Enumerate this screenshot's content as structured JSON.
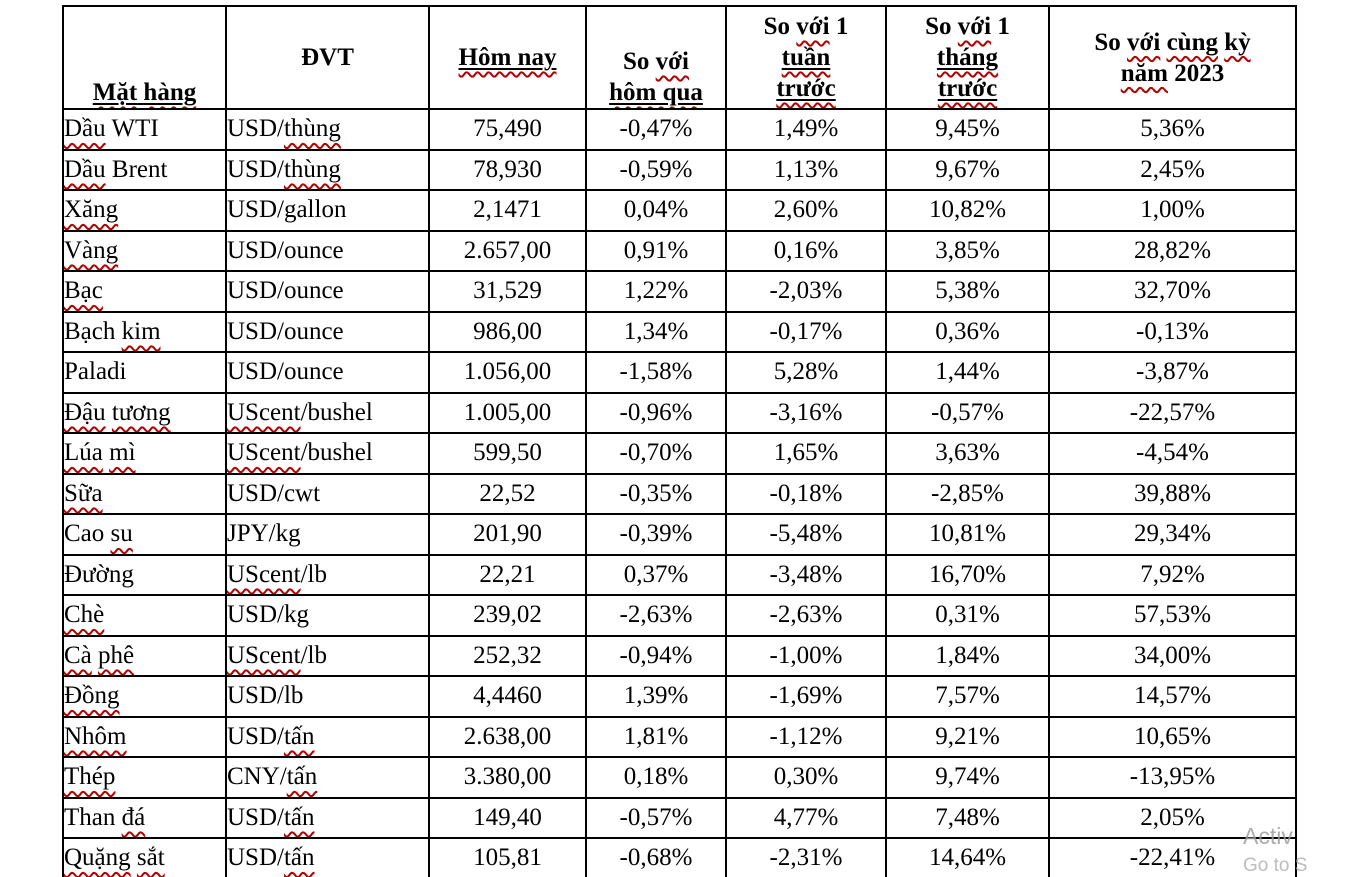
{
  "colors": {
    "spellcheck_red": "#b30000",
    "table_border": "#000000",
    "watermark_gray": "#9e9e9e"
  },
  "watermark": {
    "line1": "Activ",
    "line2": "Go to S"
  },
  "table": {
    "headers": [
      {
        "key": "mat_hang",
        "label": "Mặt hàng",
        "lines": [
          [
            {
              "t": "Mặt",
              "u": 1,
              "s": 1
            },
            {
              "t": " ",
              "u": 1
            },
            {
              "t": "hàng",
              "u": 1,
              "s": 1
            }
          ]
        ]
      },
      {
        "key": "dvt",
        "label": "ĐVT",
        "lines": [
          [
            {
              "t": "ĐVT"
            }
          ]
        ]
      },
      {
        "key": "hom_nay",
        "label": "Hôm nay",
        "lines": [
          [
            {
              "t": "Hôm nay",
              "u": 1,
              "s": 1
            }
          ]
        ]
      },
      {
        "key": "so_voi_hom_qua",
        "label": "So với hôm qua",
        "lines": [
          [
            {
              "t": "So "
            },
            {
              "t": "với",
              "s": 1
            }
          ],
          [
            {
              "t": "hôm qua",
              "u": 1,
              "s": 1
            }
          ]
        ]
      },
      {
        "key": "so_voi_1_tuan_truoc",
        "label": "So với 1 tuần trước",
        "lines": [
          [
            {
              "t": "So "
            },
            {
              "t": "với",
              "s": 1
            },
            {
              "t": " 1"
            }
          ],
          [
            {
              "t": "tuần",
              "u": 1,
              "s": 1
            }
          ],
          [
            {
              "t": "trước",
              "u": 1,
              "s": 1
            }
          ]
        ]
      },
      {
        "key": "so_voi_1_thang_truoc",
        "label": "So với 1 tháng trước",
        "lines": [
          [
            {
              "t": "So "
            },
            {
              "t": "với",
              "s": 1
            },
            {
              "t": " 1"
            }
          ],
          [
            {
              "t": "tháng",
              "u": 1,
              "s": 1
            }
          ],
          [
            {
              "t": "trước",
              "u": 1,
              "s": 1
            }
          ]
        ]
      },
      {
        "key": "so_voi_cung_ky_nam_2023",
        "label": "So với cùng kỳ năm 2023",
        "lines": [
          [
            {
              "t": "So "
            },
            {
              "t": "với",
              "s": 1
            },
            {
              "t": " "
            },
            {
              "t": "cùng",
              "s": 1
            },
            {
              "t": " "
            },
            {
              "t": "kỳ",
              "s": 1
            }
          ],
          [
            {
              "t": "năm",
              "s": 1
            },
            {
              "t": " 2023"
            }
          ]
        ]
      }
    ],
    "rows": [
      {
        "name": [
          {
            "t": "Dầu",
            "s": 1
          },
          {
            "t": " WTI"
          }
        ],
        "unit": [
          {
            "t": "USD/"
          },
          {
            "t": "thùng",
            "s": 1
          }
        ],
        "today": "75,490",
        "vs_yesterday": "-0,47%",
        "vs_week": "1,49%",
        "vs_month": "9,45%",
        "vs_2023": "5,36%"
      },
      {
        "name": [
          {
            "t": "Dầu",
            "s": 1
          },
          {
            "t": " Brent"
          }
        ],
        "unit": [
          {
            "t": "USD/"
          },
          {
            "t": "thùng",
            "s": 1
          }
        ],
        "today": "78,930",
        "vs_yesterday": "-0,59%",
        "vs_week": "1,13%",
        "vs_month": "9,67%",
        "vs_2023": "2,45%"
      },
      {
        "name": [
          {
            "t": "Xăng",
            "s": 1
          }
        ],
        "unit": [
          {
            "t": "USD/gallon"
          }
        ],
        "today": "2,1471",
        "vs_yesterday": "0,04%",
        "vs_week": "2,60%",
        "vs_month": "10,82%",
        "vs_2023": "1,00%"
      },
      {
        "name": [
          {
            "t": "Vàng",
            "s": 1
          }
        ],
        "unit": [
          {
            "t": "USD/ounce"
          }
        ],
        "today": "2.657,00",
        "vs_yesterday": "0,91%",
        "vs_week": "0,16%",
        "vs_month": "3,85%",
        "vs_2023": "28,82%"
      },
      {
        "name": [
          {
            "t": "Bạc",
            "s": 1
          }
        ],
        "unit": [
          {
            "t": "USD/ounce"
          }
        ],
        "today": "31,529",
        "vs_yesterday": "1,22%",
        "vs_week": "-2,03%",
        "vs_month": "5,38%",
        "vs_2023": "32,70%"
      },
      {
        "name": [
          {
            "t": "Bạch "
          },
          {
            "t": "kim",
            "s": 1
          }
        ],
        "unit": [
          {
            "t": "USD/ounce"
          }
        ],
        "today": "986,00",
        "vs_yesterday": "1,34%",
        "vs_week": "-0,17%",
        "vs_month": "0,36%",
        "vs_2023": "-0,13%"
      },
      {
        "name": [
          {
            "t": "Paladi"
          }
        ],
        "unit": [
          {
            "t": "USD/ounce"
          }
        ],
        "today": "1.056,00",
        "vs_yesterday": "-1,58%",
        "vs_week": "5,28%",
        "vs_month": "1,44%",
        "vs_2023": "-3,87%"
      },
      {
        "name": [
          {
            "t": "Đậu",
            "s": 1
          },
          {
            "t": " "
          },
          {
            "t": "tương",
            "s": 1
          }
        ],
        "unit": [
          {
            "t": "UScent",
            "s": 1
          },
          {
            "t": "/bushel"
          }
        ],
        "today": "1.005,00",
        "vs_yesterday": "-0,96%",
        "vs_week": "-3,16%",
        "vs_month": "-0,57%",
        "vs_2023": "-22,57%"
      },
      {
        "name": [
          {
            "t": "Lúa",
            "s": 1
          },
          {
            "t": " "
          },
          {
            "t": "mì",
            "s": 1
          }
        ],
        "unit": [
          {
            "t": "UScent",
            "s": 1
          },
          {
            "t": "/bushel"
          }
        ],
        "today": "599,50",
        "vs_yesterday": "-0,70%",
        "vs_week": "1,65%",
        "vs_month": "3,63%",
        "vs_2023": "-4,54%"
      },
      {
        "name": [
          {
            "t": "Sữa",
            "s": 1
          }
        ],
        "unit": [
          {
            "t": "USD/cwt"
          }
        ],
        "today": "22,52",
        "vs_yesterday": "-0,35%",
        "vs_week": "-0,18%",
        "vs_month": "-2,85%",
        "vs_2023": "39,88%"
      },
      {
        "name": [
          {
            "t": "Cao "
          },
          {
            "t": "su",
            "s": 1
          }
        ],
        "unit": [
          {
            "t": "JPY/kg"
          }
        ],
        "today": "201,90",
        "vs_yesterday": "-0,39%",
        "vs_week": "-5,48%",
        "vs_month": "10,81%",
        "vs_2023": "29,34%"
      },
      {
        "name": [
          {
            "t": "Đường"
          }
        ],
        "unit": [
          {
            "t": "UScent",
            "s": 1
          },
          {
            "t": "/lb"
          }
        ],
        "today": "22,21",
        "vs_yesterday": "0,37%",
        "vs_week": "-3,48%",
        "vs_month": "16,70%",
        "vs_2023": "7,92%"
      },
      {
        "name": [
          {
            "t": "Chè",
            "s": 1
          }
        ],
        "unit": [
          {
            "t": "USD/kg"
          }
        ],
        "today": "239,02",
        "vs_yesterday": "-2,63%",
        "vs_week": "-2,63%",
        "vs_month": "0,31%",
        "vs_2023": "57,53%"
      },
      {
        "name": [
          {
            "t": "Cà",
            "s": 1
          },
          {
            "t": " "
          },
          {
            "t": "phê",
            "s": 1
          }
        ],
        "unit": [
          {
            "t": "UScent",
            "s": 1
          },
          {
            "t": "/lb"
          }
        ],
        "today": "252,32",
        "vs_yesterday": "-0,94%",
        "vs_week": "-1,00%",
        "vs_month": "1,84%",
        "vs_2023": "34,00%"
      },
      {
        "name": [
          {
            "t": "Đồng",
            "s": 1
          }
        ],
        "unit": [
          {
            "t": "USD/lb"
          }
        ],
        "today": "4,4460",
        "vs_yesterday": "1,39%",
        "vs_week": "-1,69%",
        "vs_month": "7,57%",
        "vs_2023": "14,57%"
      },
      {
        "name": [
          {
            "t": "Nhôm",
            "s": 1
          }
        ],
        "unit": [
          {
            "t": "USD/"
          },
          {
            "t": "tấn",
            "s": 1
          }
        ],
        "today": "2.638,00",
        "vs_yesterday": "1,81%",
        "vs_week": "-1,12%",
        "vs_month": "9,21%",
        "vs_2023": "10,65%"
      },
      {
        "name": [
          {
            "t": "Thép",
            "s": 1
          }
        ],
        "unit": [
          {
            "t": "CNY/"
          },
          {
            "t": "tấn",
            "s": 1
          }
        ],
        "today": "3.380,00",
        "vs_yesterday": "0,18%",
        "vs_week": "0,30%",
        "vs_month": "9,74%",
        "vs_2023": "-13,95%"
      },
      {
        "name": [
          {
            "t": "Than "
          },
          {
            "t": "đá",
            "s": 1
          }
        ],
        "unit": [
          {
            "t": "USD/"
          },
          {
            "t": "tấn",
            "s": 1
          }
        ],
        "today": "149,40",
        "vs_yesterday": "-0,57%",
        "vs_week": "4,77%",
        "vs_month": "7,48%",
        "vs_2023": "2,05%"
      },
      {
        "name": [
          {
            "t": "Quặng",
            "s": 1
          },
          {
            "t": " "
          },
          {
            "t": "sắt",
            "s": 1
          }
        ],
        "unit": [
          {
            "t": "USD/"
          },
          {
            "t": "tấn",
            "s": 1
          }
        ],
        "today": "105,81",
        "vs_yesterday": "-0,68%",
        "vs_week": "-2,31%",
        "vs_month": "14,64%",
        "vs_2023": "-22,41%"
      }
    ]
  }
}
